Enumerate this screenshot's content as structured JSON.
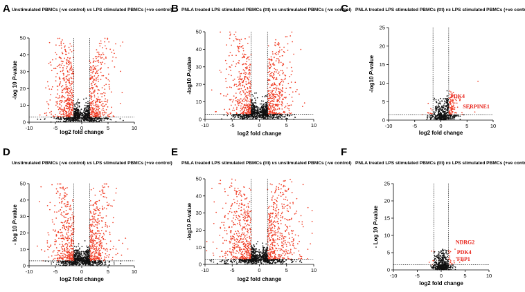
{
  "chart_data": [
    {
      "type": "scatter",
      "label": "A",
      "title_parts": [
        "Unstimulated PBMCs (-ve control) ",
        "vs",
        " LPS stimulated PBMCs (+ve control)"
      ],
      "xlabel": "log2 fold change",
      "ylabel_parts": [
        "-log 10 ",
        "P",
        "-value"
      ],
      "xlim": [
        -10,
        10
      ],
      "ylim": [
        0,
        50
      ],
      "xticks": [
        -10,
        -5,
        0,
        5,
        10
      ],
      "yticks": [
        0,
        10,
        20,
        30,
        40,
        50
      ],
      "fc_threshold": [
        -1.5,
        1.5
      ],
      "p_threshold": 3,
      "density": "high",
      "seed": 11,
      "annotations": []
    },
    {
      "type": "scatter",
      "label": "B",
      "title_parts": [
        "PNLA treated LPS stimulated PBMCs (ttt) ",
        "vs",
        " unstimulated PBMCs (-ve control)"
      ],
      "xlabel": "log2 fold change",
      "ylabel_parts": [
        "-log10 ",
        "P",
        "-value"
      ],
      "xlim": [
        -10,
        10
      ],
      "ylim": [
        0,
        50
      ],
      "xticks": [
        -10,
        -5,
        0,
        5,
        10
      ],
      "yticks": [
        0,
        10,
        20,
        30,
        40,
        50
      ],
      "fc_threshold": [
        -1.5,
        1.5
      ],
      "p_threshold": 3,
      "density": "high",
      "seed": 23,
      "annotations": []
    },
    {
      "type": "scatter",
      "label": "C",
      "title_parts": [
        "PNLA treated LPS stimulated PBMCs (ttt) ",
        "vs",
        " LPS stimulated PBMCs (+ve control)"
      ],
      "xlabel": "log2 fold change",
      "ylabel_parts": [
        "-log10 ",
        "P",
        "-value"
      ],
      "xlim": [
        -10,
        10
      ],
      "ylim": [
        0,
        25
      ],
      "xticks": [
        -10,
        -5,
        0,
        5,
        10
      ],
      "yticks": [
        0,
        5,
        10,
        15,
        20,
        25
      ],
      "fc_threshold": [
        -1.5,
        1.5
      ],
      "p_threshold": 1.5,
      "density": "low-up",
      "seed": 37,
      "annotations": [
        {
          "text": "PDK4",
          "x": 1.8,
          "y": 6.0
        },
        {
          "text": "SERPINE1",
          "x": 4.2,
          "y": 3.2
        }
      ]
    },
    {
      "type": "scatter",
      "label": "D",
      "title_parts": [
        "Unstimulated PBMCs (-ve control) ",
        "vs",
        " LPS stimulated PBMCs (+ve control)"
      ],
      "xlabel": "log2 fold change",
      "ylabel_parts": [
        "- log 10 ",
        "P",
        "-value"
      ],
      "xlim": [
        -10,
        10
      ],
      "ylim": [
        0,
        50
      ],
      "xticks": [
        -10,
        -5,
        0,
        5,
        10
      ],
      "yticks": [
        0,
        10,
        20,
        30,
        40,
        50
      ],
      "fc_threshold": [
        -1.5,
        1.5
      ],
      "p_threshold": 3,
      "density": "high",
      "seed": 51,
      "annotations": []
    },
    {
      "type": "scatter",
      "label": "E",
      "title_parts": [
        "PNLA treated LPS stimulated PBMCs (ttt) ",
        "vs",
        " unstimulated PBMCs (-ve control)"
      ],
      "xlabel": "log2 fold change",
      "ylabel_parts": [
        "-log10 ",
        "P",
        "-value"
      ],
      "xlim": [
        -10,
        10
      ],
      "ylim": [
        0,
        50
      ],
      "xticks": [
        -10,
        -5,
        0,
        5,
        10
      ],
      "yticks": [
        0,
        10,
        20,
        30,
        40,
        50
      ],
      "fc_threshold": [
        -1.5,
        1.5
      ],
      "p_threshold": 3,
      "density": "high-wide",
      "seed": 67,
      "annotations": []
    },
    {
      "type": "scatter",
      "label": "F",
      "title_parts": [
        "PNLA treated LPS stimulated PBMCs (ttt) ",
        "vs",
        " LPS stimulated PBMCs (+ve control)"
      ],
      "xlabel": "log2 fold change",
      "ylabel_parts": [
        "- Log 10 ",
        "P",
        "-value"
      ],
      "xlim": [
        -10,
        10
      ],
      "ylim": [
        0,
        25
      ],
      "xticks": [
        -10,
        -5,
        0,
        5,
        10
      ],
      "yticks": [
        0,
        5,
        10,
        15,
        20,
        25
      ],
      "fc_threshold": [
        -1.5,
        1.5
      ],
      "p_threshold": 1.5,
      "density": "low-flat",
      "seed": 79,
      "annotations": [
        {
          "text": "NDRG2",
          "x": 3.0,
          "y": 7.5
        },
        {
          "text": "PDK4",
          "x": 3.3,
          "y": 4.6
        },
        {
          "text": "FBP1",
          "x": 3.3,
          "y": 2.6
        }
      ]
    }
  ]
}
